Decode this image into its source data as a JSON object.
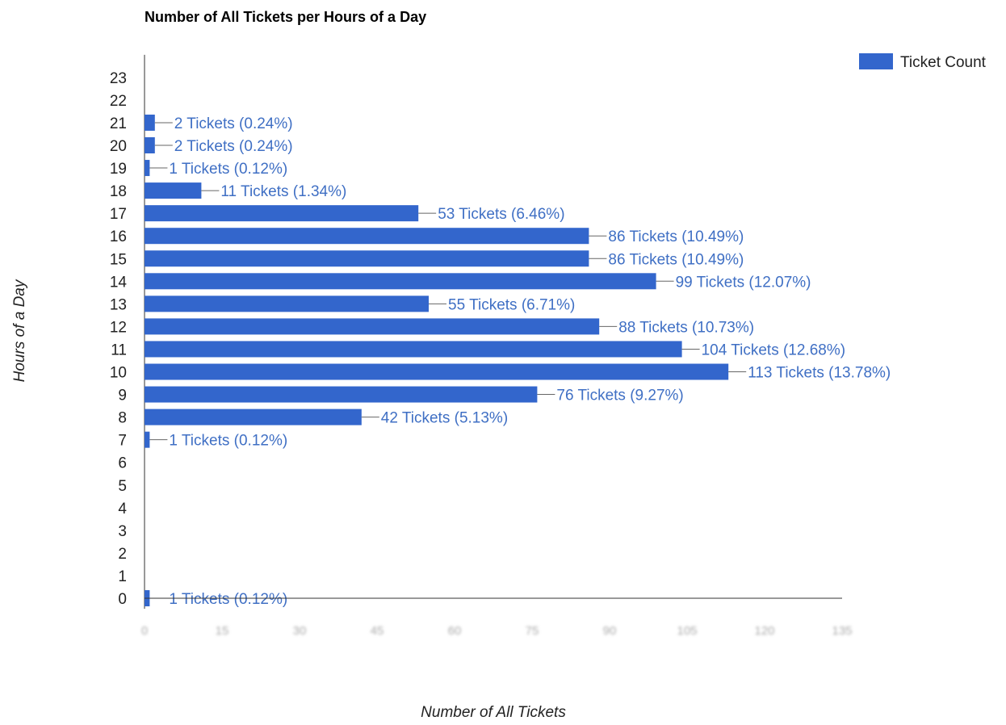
{
  "chart_data": {
    "type": "bar",
    "orientation": "horizontal",
    "title": "Number of All Tickets per Hours of a Day",
    "xlabel": "Number of All Tickets",
    "ylabel": "Hours of a Day",
    "legend": {
      "position": "top-right",
      "entries": [
        "Ticket Count"
      ]
    },
    "series_color": "#3366cc",
    "label_color": "#3f6fc4",
    "xlim": [
      0,
      135
    ],
    "x_ticks": [
      "0",
      "15",
      "30",
      "45",
      "60",
      "75",
      "90",
      "105",
      "120",
      "135"
    ],
    "categories": [
      "0",
      "1",
      "2",
      "3",
      "4",
      "5",
      "6",
      "7",
      "8",
      "9",
      "10",
      "11",
      "12",
      "13",
      "14",
      "15",
      "16",
      "17",
      "18",
      "19",
      "20",
      "21",
      "22",
      "23"
    ],
    "values": [
      1,
      0,
      0,
      0,
      0,
      0,
      0,
      1,
      42,
      76,
      113,
      104,
      88,
      55,
      99,
      86,
      86,
      53,
      11,
      1,
      2,
      2,
      0,
      0
    ],
    "labels": [
      "1 Tickets (0.12%)",
      "",
      "",
      "",
      "",
      "",
      "",
      "1 Tickets (0.12%)",
      "42 Tickets (5.13%)",
      "76 Tickets (9.27%)",
      "113 Tickets (13.78%)",
      "104 Tickets (12.68%)",
      "88 Tickets (10.73%)",
      "55 Tickets (6.71%)",
      "99 Tickets (12.07%)",
      "86 Tickets (10.49%)",
      "86 Tickets (10.49%)",
      "53 Tickets (6.46%)",
      "11 Tickets (1.34%)",
      "1 Tickets (0.12%)",
      "2 Tickets (0.24%)",
      "2 Tickets (0.24%)",
      "",
      ""
    ]
  }
}
